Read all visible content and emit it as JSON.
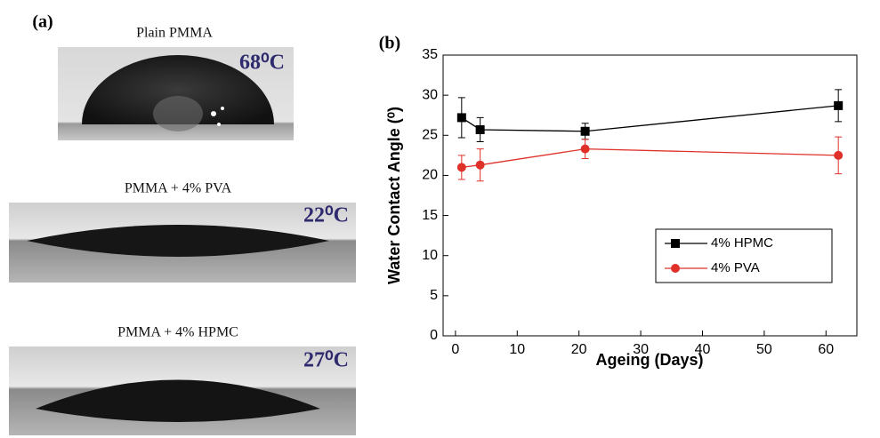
{
  "panel_a": {
    "label": "(a)",
    "images": [
      {
        "caption": "Plain PMMA",
        "angle": "68⁰C"
      },
      {
        "caption": "PMMA + 4% PVA",
        "angle": "22⁰C"
      },
      {
        "caption": "PMMA + 4% HPMC",
        "angle": "27⁰C"
      }
    ]
  },
  "chart_data": {
    "type": "line",
    "panel_label": "(b)",
    "x_label": "Ageing (Days)",
    "y_label": "Water Contact Angle (⁰)",
    "x": [
      1,
      4,
      21,
      62
    ],
    "series": [
      {
        "name": "4% HPMC",
        "color": "#000000",
        "marker": "square",
        "values": [
          27.2,
          25.7,
          25.5,
          28.7
        ],
        "errors": [
          2.5,
          1.5,
          1.0,
          2.0
        ]
      },
      {
        "name": "4% PVA",
        "color": "#e0302a",
        "marker": "circle",
        "values": [
          21.0,
          21.3,
          23.3,
          22.5
        ],
        "errors": [
          1.5,
          2.0,
          1.2,
          2.3
        ]
      }
    ],
    "xlim": [
      -2,
      65
    ],
    "xticks": [
      0,
      10,
      20,
      30,
      40,
      50,
      60
    ],
    "ylim": [
      0,
      35
    ],
    "yticks": [
      0,
      5,
      10,
      15,
      20,
      25,
      30,
      35
    ],
    "legend": "center right"
  }
}
